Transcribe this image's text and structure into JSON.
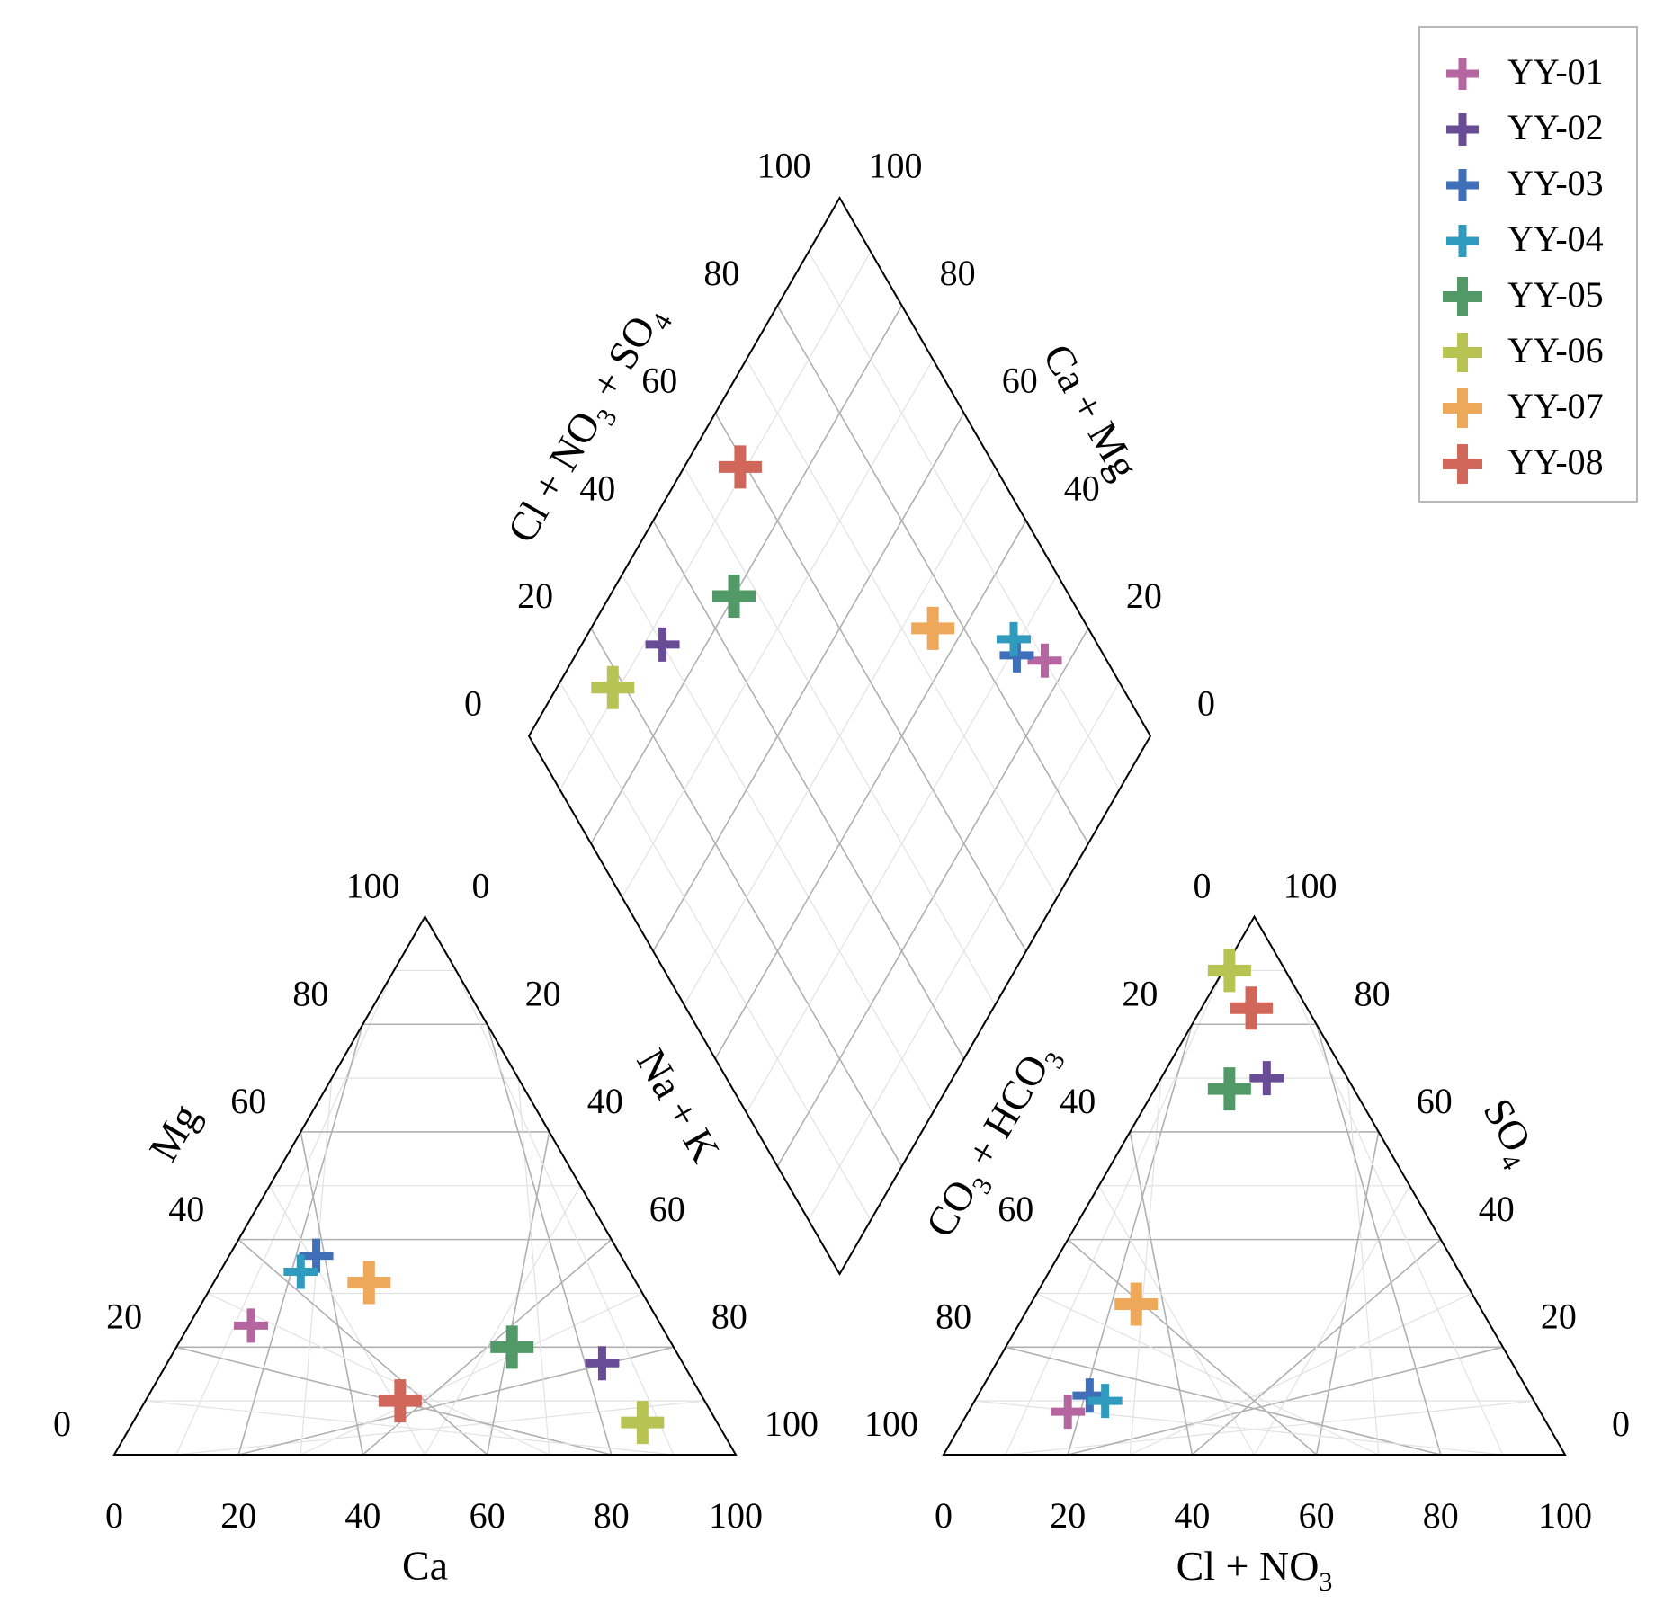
{
  "chart_data": {
    "type": "scatter",
    "subtype": "piper",
    "grid": true,
    "legend_position": "top-right",
    "ticks": [
      "0",
      "20",
      "40",
      "60",
      "80",
      "100"
    ],
    "axis_labels": {
      "cation_left": "Mg",
      "cation_right": "Na + K",
      "cation_bottom": "Ca",
      "anion_left": "CO3 + HCO3",
      "anion_right": "SO4",
      "anion_bottom": "Cl + NO3",
      "diamond_left": "Cl + NO3 + SO4",
      "diamond_right": "Ca + Mg"
    },
    "series": [
      {
        "name": "YY-01",
        "color": "#b5659f",
        "marker_size": "small",
        "cations": {
          "Ca": 66,
          "Mg": 24,
          "NaK": 10
        },
        "anions": {
          "ClNO3": 16,
          "SO4": 8,
          "CO3HCO3": 76
        }
      },
      {
        "name": "YY-02",
        "color": "#684c96",
        "marker_size": "small",
        "cations": {
          "Ca": 13,
          "Mg": 17,
          "NaK": 70
        },
        "anions": {
          "ClNO3": 17,
          "SO4": 70,
          "CO3HCO3": 13
        }
      },
      {
        "name": "YY-03",
        "color": "#3f6fb8",
        "marker_size": "small",
        "cations": {
          "Ca": 49,
          "Mg": 37,
          "NaK": 14
        },
        "anions": {
          "ClNO3": 18,
          "SO4": 11,
          "CO3HCO3": 71
        }
      },
      {
        "name": "YY-04",
        "color": "#2f9bbf",
        "marker_size": "small",
        "cations": {
          "Ca": 53,
          "Mg": 34,
          "NaK": 13
        },
        "anions": {
          "ClNO3": 21,
          "SO4": 10,
          "CO3HCO3": 69
        }
      },
      {
        "name": "YY-05",
        "color": "#519a67",
        "marker_size": "large",
        "cations": {
          "Ca": 26,
          "Mg": 20,
          "NaK": 54
        },
        "anions": {
          "ClNO3": 12,
          "SO4": 68,
          "CO3HCO3": 20
        }
      },
      {
        "name": "YY-06",
        "color": "#b7c453",
        "marker_size": "large",
        "cations": {
          "Ca": 12,
          "Mg": 6,
          "NaK": 82
        },
        "anions": {
          "ClNO3": 1,
          "SO4": 90,
          "CO3HCO3": 9
        }
      },
      {
        "name": "YY-07",
        "color": "#eea85a",
        "marker_size": "large",
        "cations": {
          "Ca": 43,
          "Mg": 32,
          "NaK": 25
        },
        "anions": {
          "ClNO3": 17,
          "SO4": 28,
          "CO3HCO3": 55
        }
      },
      {
        "name": "YY-08",
        "color": "#d1665a",
        "marker_size": "large",
        "cations": {
          "Ca": 49,
          "Mg": 10,
          "NaK": 41
        },
        "anions": {
          "ClNO3": 8,
          "SO4": 83,
          "CO3HCO3": 9
        }
      }
    ]
  }
}
